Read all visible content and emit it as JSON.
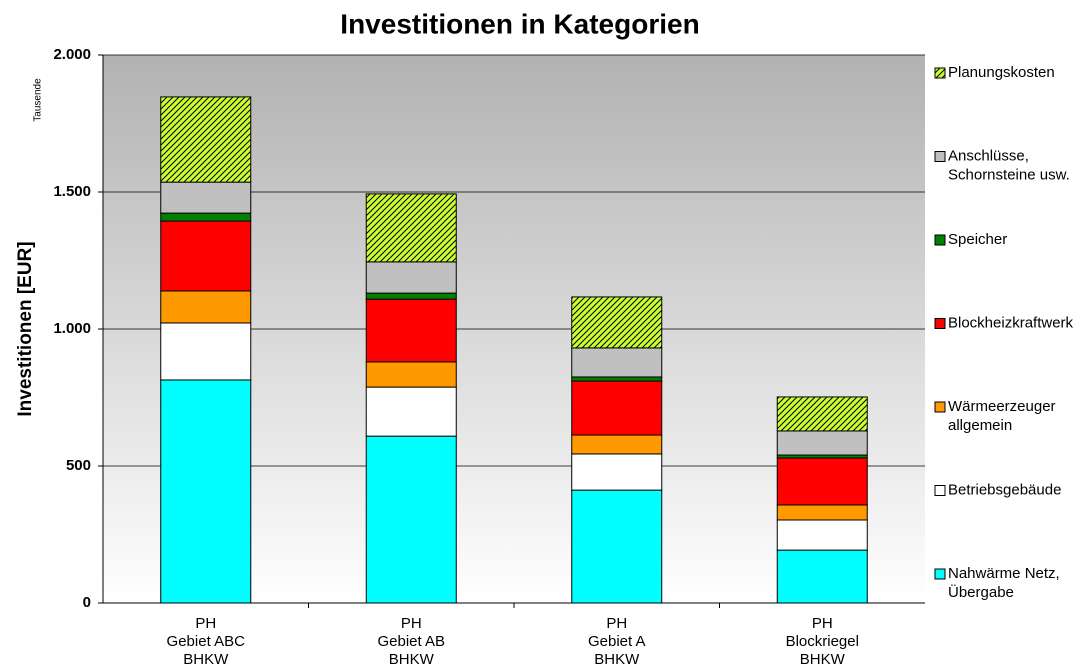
{
  "chart_data": {
    "type": "stacked_bar",
    "title": "Investitionen in Kategorien",
    "y_label": "Investitionen [EUR]",
    "y_unit": "Tausende",
    "categories": [
      "PH\nGebiet ABC\nBHKW",
      "PH\nGebiet AB\nBHKW",
      "PH\nGebiet A\nBHKW",
      "PH\nBlockriegel\nBHKW"
    ],
    "series": [
      {
        "name": "Nahwärme Netz,\nÜbergabe",
        "color": "#00ffff",
        "values": [
          814,
          609,
          412,
          193
        ]
      },
      {
        "name": "Betriebsgebäude",
        "color": "#ffffff",
        "values": [
          208,
          179,
          132,
          110
        ]
      },
      {
        "name": "Wärmeerzeuger\nallgemein",
        "color": "#ff9900",
        "values": [
          117,
          92,
          69,
          55
        ]
      },
      {
        "name": "Blockheizkraftwerk",
        "color": "#ff0000",
        "values": [
          255,
          229,
          197,
          171
        ]
      },
      {
        "name": "Speicher",
        "color": "#008000",
        "values": [
          29,
          22,
          15,
          11
        ]
      },
      {
        "name": "Anschlüsse,\nSchornsteine usw.",
        "color": "#c0c0c0",
        "values": [
          113,
          114,
          106,
          88
        ]
      },
      {
        "name": "Planungskosten",
        "color": "#ccff33",
        "hatch": true,
        "values": [
          311,
          248,
          186,
          124
        ]
      }
    ],
    "ylim": [
      0,
      2000
    ],
    "yticks": [
      0,
      500,
      {
        "value": 1000,
        "label": "1.000"
      },
      {
        "value": 1500,
        "label": "1.500"
      },
      {
        "value": 2000,
        "label": "2.000"
      }
    ],
    "grid": true,
    "legend": "right"
  }
}
